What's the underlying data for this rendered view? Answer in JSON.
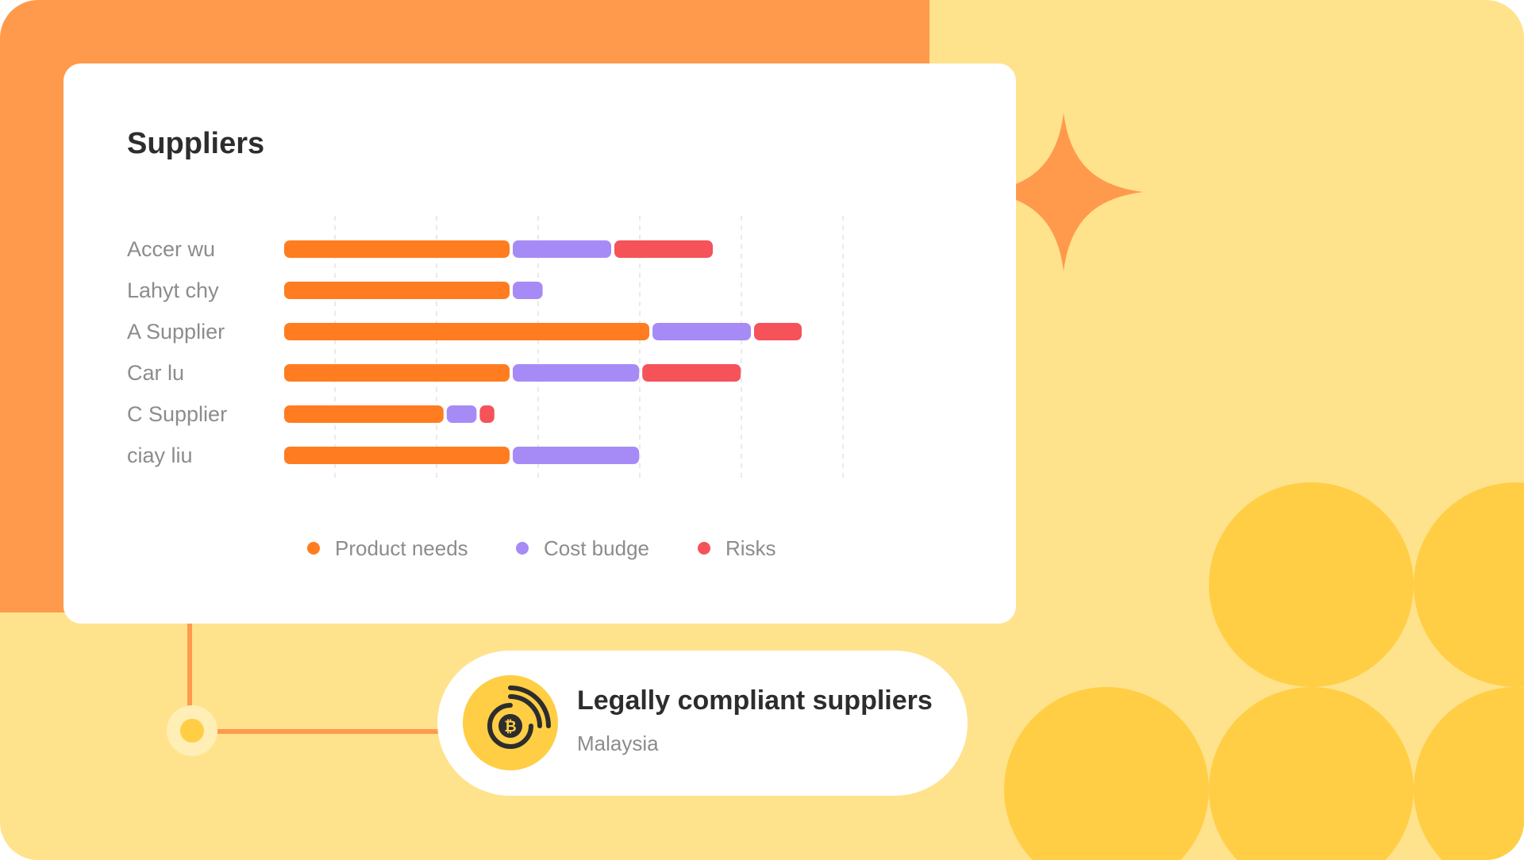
{
  "colors": {
    "product": "#FF7D20",
    "cost": "#A68BF7",
    "risks": "#F5525A",
    "grid": "#e3e3e3",
    "label": "#8c8c8c"
  },
  "chart_data": {
    "type": "bar",
    "orientation": "horizontal",
    "stacked": true,
    "title": "Suppliers",
    "categories": [
      "Accer wu",
      "Lahyt chy",
      "A Supplier",
      "Car lu",
      "C Supplier",
      "ciay liu"
    ],
    "series": [
      {
        "name": "Product needs",
        "color": "#FF7D20",
        "values": [
          4.5,
          4.5,
          7.25,
          4.5,
          3.2,
          4.5
        ]
      },
      {
        "name": "Cost budge",
        "color": "#A68BF7",
        "values": [
          2.0,
          0.65,
          2.0,
          2.55,
          0.65,
          2.55
        ]
      },
      {
        "name": "Risks",
        "color": "#F5525A",
        "values": [
          2.0,
          0,
          1.0,
          2.0,
          0.35,
          0
        ]
      }
    ],
    "xlim": [
      0,
      13.2
    ],
    "grid": true,
    "legend": "bottom"
  },
  "info_card": {
    "title": "Legally compliant suppliers",
    "subtitle": "Malaysia",
    "icon": "wireless-coin-icon"
  },
  "decor": {
    "sparkle_icon": "sparkle-icon"
  }
}
